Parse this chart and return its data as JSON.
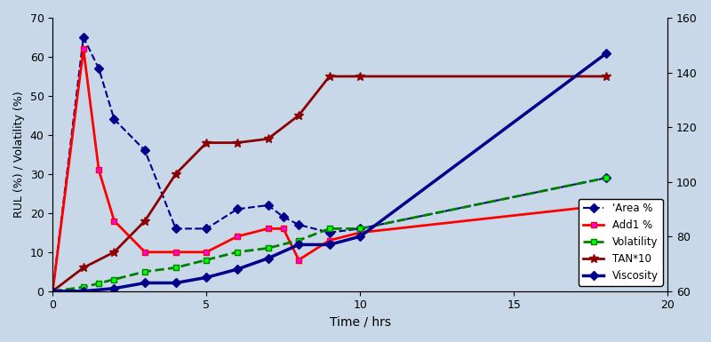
{
  "title": "",
  "xlabel": "Time / hrs",
  "ylabel_left": "RUL (%) / Volatility (%)",
  "ylabel_right": "",
  "xlim": [
    0,
    20
  ],
  "ylim_left": [
    0,
    70
  ],
  "ylim_right": [
    60,
    160
  ],
  "yticks_left": [
    0,
    10,
    20,
    30,
    40,
    50,
    60,
    70
  ],
  "yticks_right": [
    60,
    80,
    100,
    120,
    140,
    160
  ],
  "xticks": [
    0,
    5,
    10,
    15,
    20
  ],
  "area_x": [
    0,
    1,
    1.5,
    2,
    3,
    4,
    5,
    6,
    7,
    7.5,
    8,
    9,
    10,
    18
  ],
  "area_y": [
    0,
    65,
    57,
    44,
    36,
    16,
    16,
    21,
    22,
    19,
    17,
    15,
    16,
    29
  ],
  "add1_x": [
    0,
    1,
    1.5,
    2,
    3,
    4,
    5,
    6,
    7,
    7.5,
    8,
    9,
    10,
    18
  ],
  "add1_y": [
    0,
    62,
    31,
    18,
    10,
    10,
    10,
    14,
    16,
    16,
    8,
    13,
    15,
    22
  ],
  "volatility_x": [
    0,
    1,
    1.5,
    2,
    3,
    4,
    5,
    6,
    7,
    8,
    9,
    10,
    18
  ],
  "volatility_y": [
    0,
    1,
    2,
    3,
    5,
    6,
    8,
    10,
    11,
    13,
    16,
    16,
    29
  ],
  "tan_x": [
    0,
    1,
    2,
    3,
    4,
    5,
    6,
    7,
    8,
    9,
    10,
    18
  ],
  "tan_y": [
    0,
    6,
    10,
    18,
    30,
    38,
    38,
    39,
    45,
    55,
    55,
    55
  ],
  "viscosity_x": [
    0,
    1,
    2,
    3,
    4,
    5,
    6,
    7,
    8,
    9,
    10,
    18
  ],
  "viscosity_y": [
    60,
    60,
    61,
    63,
    63,
    65,
    68,
    72,
    77,
    77,
    80,
    147
  ],
  "color_area": "#00008B",
  "color_add1": "#FF0000",
  "color_volatility": "#008000",
  "color_tan": "#8B0000",
  "color_viscosity": "#00008B",
  "bg_color": "#d8e4f0",
  "legend_labels": [
    "'Area %",
    "Add1 %",
    "Volatility",
    "TAN*10",
    "Viscosity"
  ],
  "figsize": [
    8.0,
    3.85
  ],
  "dpi": 100
}
